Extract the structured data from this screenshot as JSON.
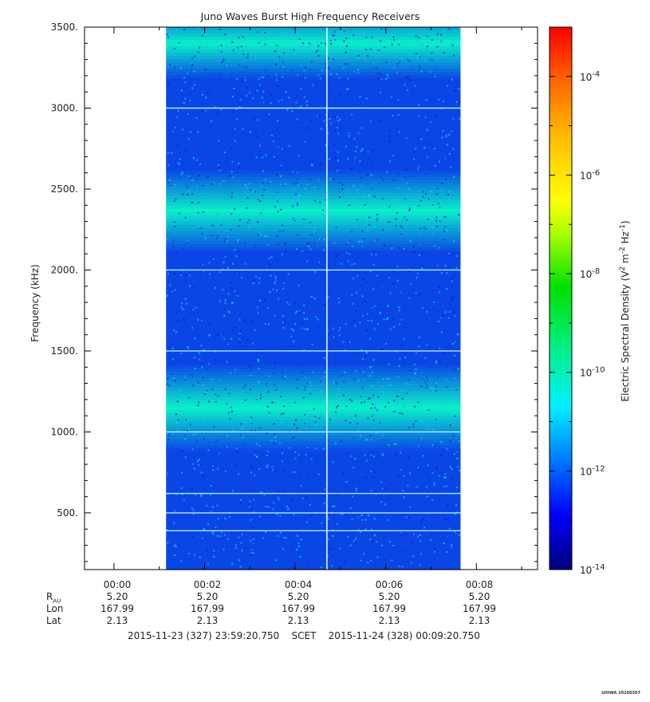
{
  "chart_data": {
    "type": "heatmap",
    "title": "Juno Waves Burst High Frequency Receivers",
    "ylabel": "Frequency (kHz)",
    "ylim": [
      150,
      3500
    ],
    "y_ticks": [
      "3500.",
      "3000.",
      "2500.",
      "2000.",
      "1500.",
      "1000.",
      "500."
    ],
    "y_tick_values": [
      3500,
      3000,
      2500,
      2000,
      1500,
      1000,
      500
    ],
    "x_ticks": [
      "00:00",
      "00:02",
      "00:04",
      "00:06",
      "00:08"
    ],
    "x_tick_minutes": [
      0.65,
      2.65,
      4.65,
      6.65,
      8.65
    ],
    "x_range_minutes": [
      0,
      10
    ],
    "data_extent_minutes": [
      1.8,
      8.3
    ],
    "gap_line_minute": 5.35,
    "colorbar": {
      "label": "Electric Spectral Density (V² m⁻² Hz⁻¹)",
      "label_text": "Electric Spectral Density",
      "scale": "log",
      "range_exp": [
        -14,
        -3
      ],
      "tick_exps": [
        -4,
        -6,
        -8,
        -10,
        -12,
        -14
      ],
      "tick_labels": [
        "10",
        "10",
        "10",
        "10",
        "10",
        "10"
      ],
      "tick_sups": [
        "-4",
        "-6",
        "-8",
        "-10",
        "-12",
        "-14"
      ]
    },
    "bright_bands_khz": [
      [
        3300,
        3500
      ],
      [
        2230,
        2500
      ],
      [
        1000,
        1300
      ]
    ],
    "horizontal_lines_khz": [
      3000,
      2000,
      1500,
      1000,
      620,
      500,
      390
    ]
  },
  "ephemeris": {
    "row_labels": {
      "r": "R",
      "r_sub": "AU",
      "lon": "Lon",
      "lat": "Lat"
    },
    "columns": [
      {
        "time": "00:00",
        "r": "5.20",
        "lon": "167.99",
        "lat": "2.13"
      },
      {
        "time": "00:02",
        "r": "5.20",
        "lon": "167.99",
        "lat": "2.13"
      },
      {
        "time": "00:04",
        "r": "5.20",
        "lon": "167.99",
        "lat": "2.13"
      },
      {
        "time": "00:06",
        "r": "5.20",
        "lon": "167.99",
        "lat": "2.13"
      },
      {
        "time": "00:08",
        "r": "5.20",
        "lon": "167.99",
        "lat": "2.13"
      }
    ],
    "range_text": "2015-11-23 (327) 23:59:20.750    SCET    2015-11-24 (328) 00:09:20.750"
  },
  "stamp": "UIOWA 20200307"
}
